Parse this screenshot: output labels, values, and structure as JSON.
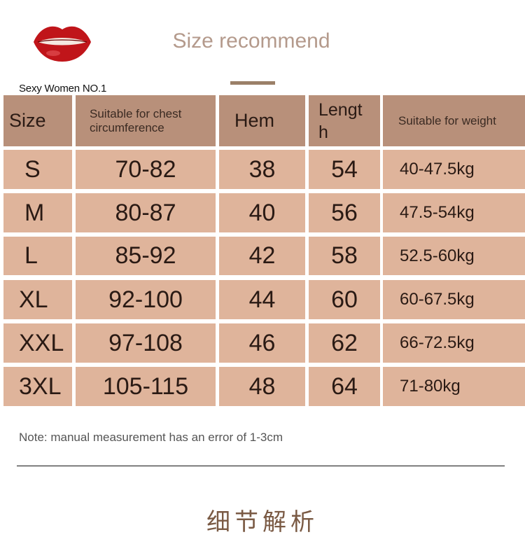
{
  "brand": {
    "name": "Sexy Women NO.1",
    "logo_icon": "red-lips-icon"
  },
  "title": "Size recommend",
  "colors": {
    "header": "#b8907a",
    "row": "#dfb49b",
    "title": "#b49a8c",
    "accent_bar": "#9b8068"
  },
  "table": {
    "headers": [
      "Size",
      "Suitable for chest circumference",
      "Hem",
      "Lengt h",
      "Suitable for weight"
    ],
    "rows": [
      [
        "S",
        "70-82",
        "38",
        "54",
        "40-47.5kg"
      ],
      [
        "M",
        "80-87",
        "40",
        "56",
        "47.5-54kg"
      ],
      [
        "L",
        "85-92",
        "42",
        "58",
        "52.5-60kg"
      ],
      [
        "XL",
        "92-100",
        "44",
        "60",
        "60-67.5kg"
      ],
      [
        "XXL",
        "97-108",
        "46",
        "62",
        "66-72.5kg"
      ],
      [
        "3XL",
        "105-115",
        "48",
        "64",
        "71-80kg"
      ]
    ]
  },
  "note": "Note: manual measurement has an error of 1-3cm",
  "next_section_title": "细节解析"
}
